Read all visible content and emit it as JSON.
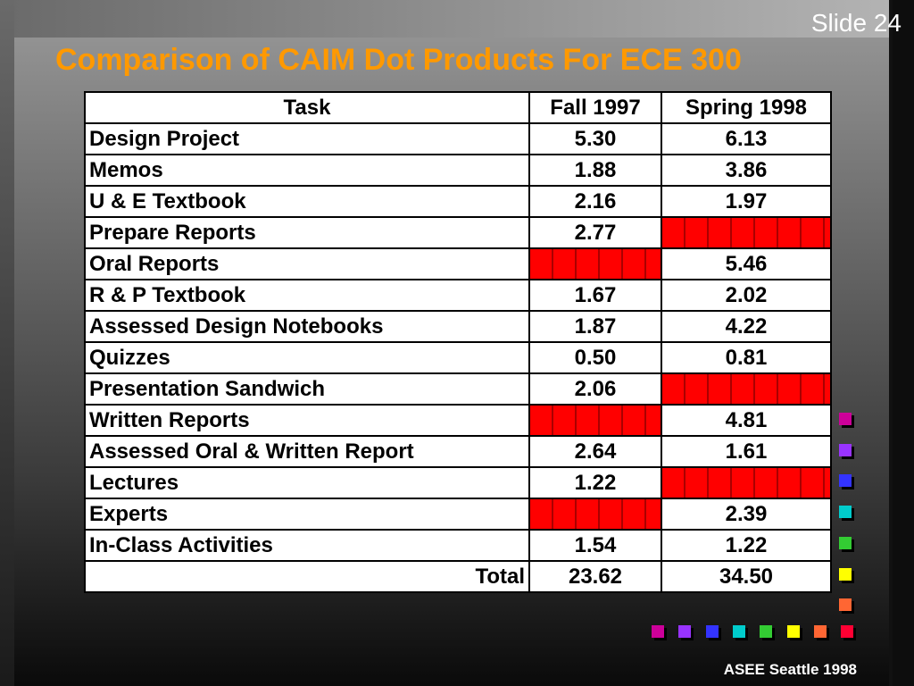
{
  "slide": {
    "number_label": "Slide 24",
    "title": "Comparison of CAIM Dot Products For ECE 300",
    "footer": "ASEE Seattle 1998"
  },
  "table": {
    "headers": [
      "Task",
      "Fall 1997",
      "Spring 1998"
    ],
    "rows": [
      {
        "task": "Design Project",
        "fall": "5.30",
        "spring": "6.13"
      },
      {
        "task": "Memos",
        "fall": "1.88",
        "spring": "3.86"
      },
      {
        "task": "U & E Textbook",
        "fall": "2.16",
        "spring": "1.97"
      },
      {
        "task": "Prepare Reports",
        "fall": "2.77",
        "spring": ""
      },
      {
        "task": "Oral Reports",
        "fall": "",
        "spring": "5.46"
      },
      {
        "task": "R & P Textbook",
        "fall": "1.67",
        "spring": "2.02"
      },
      {
        "task": "Assessed Design Notebooks",
        "fall": "1.87",
        "spring": "4.22"
      },
      {
        "task": "Quizzes",
        "fall": "0.50",
        "spring": "0.81"
      },
      {
        "task": "Presentation Sandwich",
        "fall": "2.06",
        "spring": ""
      },
      {
        "task": "Written Reports",
        "fall": "",
        "spring": "4.81"
      },
      {
        "task": "Assessed Oral & Written Report",
        "fall": "2.64",
        "spring": "1.61"
      },
      {
        "task": "Lectures",
        "fall": "1.22",
        "spring": ""
      },
      {
        "task": "Experts",
        "fall": "",
        "spring": "2.39"
      },
      {
        "task": "In-Class Activities",
        "fall": "1.54",
        "spring": "1.22"
      }
    ],
    "total": {
      "label": "Total",
      "fall": "23.62",
      "spring": "34.50"
    }
  },
  "colors": {
    "title": "#ff9900",
    "blank_cell": "#ff0000",
    "bullets_vertical": [
      "#cc0099",
      "#9933ff",
      "#3333ff",
      "#00cccc",
      "#33cc33",
      "#ffff00",
      "#ff6633"
    ],
    "bullets_horizontal": [
      "#cc0099",
      "#9933ff",
      "#3333ff",
      "#00cccc",
      "#33cc33",
      "#ffff00",
      "#ff6633",
      "#ff0033"
    ]
  }
}
